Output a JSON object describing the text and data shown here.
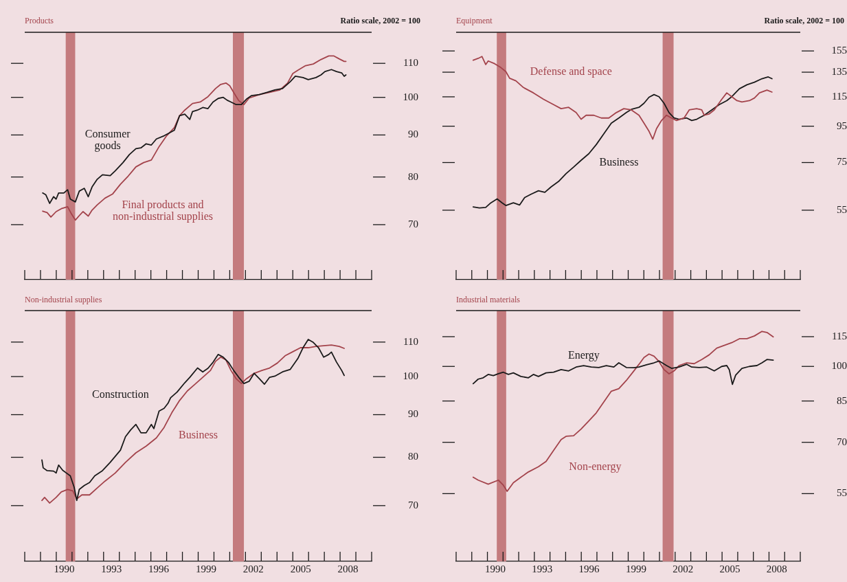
{
  "chart_data": [
    {
      "type": "line",
      "title": "Products",
      "subtitle": "Ratio scale, 2002 = 100",
      "log": true,
      "tick_labels": "y",
      "xlim": [
        1988,
        2010
      ],
      "xticks": [
        {
          "value": 1988,
          "label": null
        },
        {
          "value": 1989,
          "label": null
        },
        {
          "value": 1990,
          "label": null
        },
        {
          "value": 1991,
          "label": null
        },
        {
          "value": 1992,
          "label": null
        },
        {
          "value": 1993,
          "label": null
        },
        {
          "value": 1994,
          "label": null
        },
        {
          "value": 1995,
          "label": null
        },
        {
          "value": 1996,
          "label": null
        },
        {
          "value": 1997,
          "label": null
        },
        {
          "value": 1998,
          "label": null
        },
        {
          "value": 1999,
          "label": null
        },
        {
          "value": 2000,
          "label": null
        },
        {
          "value": 2001,
          "label": null
        },
        {
          "value": 2002,
          "label": null
        },
        {
          "value": 2003,
          "label": null
        },
        {
          "value": 2004,
          "label": null
        },
        {
          "value": 2005,
          "label": null
        },
        {
          "value": 2006,
          "label": null
        },
        {
          "value": 2007,
          "label": null
        },
        {
          "value": 2008,
          "label": null
        },
        {
          "value": 2009,
          "label": null
        },
        {
          "value": 2010,
          "label": null
        }
      ],
      "ylim": [
        60,
        120
      ],
      "yticks": [
        70,
        80,
        90,
        100,
        110
      ],
      "bands": [
        {
          "axis": "x",
          "from": 1990.6,
          "to": 1991.2,
          "color": "#c47b7e"
        },
        {
          "axis": "x",
          "from": 2001.2,
          "to": 2001.9,
          "color": "#c47b7e"
        }
      ],
      "series": [
        {
          "name": "Consumer goods",
          "color": "#1a1a1a",
          "x": [
            1989.14,
            1989.34,
            1989.58,
            1989.83,
            1989.99,
            1990.15,
            1990.48,
            1990.72,
            1990.89,
            1991.21,
            1991.46,
            1991.78,
            1992.03,
            1992.27,
            1992.6,
            1992.93,
            1993.42,
            1993.74,
            1994.23,
            1994.64,
            1995.05,
            1995.37,
            1995.7,
            1996.03,
            1996.35,
            1996.84,
            1997.17,
            1997.49,
            1997.82,
            1998.15,
            1998.47,
            1998.64,
            1998.96,
            1999.29,
            1999.62,
            1999.94,
            2000.27,
            2000.59,
            2000.84,
            2001.08,
            2001.41,
            2001.74,
            2002.06,
            2002.39,
            2002.88,
            2003.37,
            2003.86,
            2004.35,
            2004.84,
            2005.16,
            2005.65,
            2005.98,
            2006.47,
            2006.79,
            2007.04,
            2007.45,
            2007.77,
            2008.1,
            2008.26,
            2008.37
          ],
          "values": [
            76.5,
            76.1,
            74.3,
            75.7,
            75.2,
            76.5,
            76.5,
            77.2,
            75.2,
            74.6,
            76.9,
            77.5,
            75.7,
            77.8,
            79.5,
            80.5,
            80.3,
            81.4,
            83.3,
            85.2,
            86.6,
            86.8,
            87.8,
            87.5,
            89.0,
            89.8,
            90.5,
            91.2,
            95.0,
            95.4,
            94.0,
            96.1,
            96.5,
            97.2,
            96.9,
            98.7,
            99.7,
            100,
            99.2,
            98.7,
            98.0,
            98.0,
            99.5,
            100.5,
            100.8,
            101.4,
            102.1,
            102.5,
            104.5,
            106.1,
            105.7,
            105.1,
            105.7,
            106.5,
            107.5,
            108.1,
            107.5,
            107.1,
            106.1,
            106.5
          ]
        },
        {
          "name": "Final products and non-industrial supplies",
          "color": "#a3434b",
          "x": [
            1989.14,
            1989.42,
            1989.66,
            1989.99,
            1990.32,
            1990.72,
            1990.97,
            1991.21,
            1991.46,
            1991.7,
            1992.03,
            1992.27,
            1992.6,
            1993.09,
            1993.58,
            1994.07,
            1994.56,
            1995.05,
            1995.54,
            1996.03,
            1996.52,
            1997.0,
            1997.49,
            1997.82,
            1998.15,
            1998.64,
            1999.13,
            1999.62,
            2000.1,
            2000.43,
            2000.76,
            2001.0,
            2001.25,
            2001.57,
            2001.9,
            2002.23,
            2002.88,
            2003.53,
            2004.18,
            2004.67,
            2005.0,
            2005.32,
            2005.81,
            2006.3,
            2006.79,
            2007.28,
            2007.61,
            2007.94,
            2008.26,
            2008.37
          ],
          "values": [
            72.7,
            72.4,
            71.5,
            72.6,
            73.2,
            73.6,
            72.1,
            70.9,
            71.8,
            72.6,
            71.7,
            72.9,
            74.0,
            75.4,
            76.3,
            78.4,
            80.2,
            82.3,
            83.3,
            83.9,
            87.1,
            89.8,
            91.9,
            95.0,
            96.5,
            98.3,
            98.7,
            100.2,
            102.5,
            103.7,
            104.1,
            103.3,
            101.4,
            99.1,
            98.0,
            99.8,
            100.8,
            101.4,
            102.1,
            104.1,
            106.9,
            107.9,
            109.3,
            109.8,
            111.2,
            112.3,
            112.3,
            111.4,
            110.6,
            110.6
          ]
        }
      ]
    },
    {
      "type": "line",
      "title": "Equipment",
      "subtitle": "Ratio scale, 2002 = 100",
      "log": true,
      "tick_labels": "y",
      "xlim": [
        1988,
        2010
      ],
      "xticks": [
        {
          "value": 1988,
          "label": null
        },
        {
          "value": 1989,
          "label": null
        },
        {
          "value": 1990,
          "label": null
        },
        {
          "value": 1991,
          "label": null
        },
        {
          "value": 1992,
          "label": null
        },
        {
          "value": 1993,
          "label": null
        },
        {
          "value": 1994,
          "label": null
        },
        {
          "value": 1995,
          "label": null
        },
        {
          "value": 1996,
          "label": null
        },
        {
          "value": 1997,
          "label": null
        },
        {
          "value": 1998,
          "label": null
        },
        {
          "value": 1999,
          "label": null
        },
        {
          "value": 2000,
          "label": null
        },
        {
          "value": 2001,
          "label": null
        },
        {
          "value": 2002,
          "label": null
        },
        {
          "value": 2003,
          "label": null
        },
        {
          "value": 2004,
          "label": null
        },
        {
          "value": 2005,
          "label": null
        },
        {
          "value": 2006,
          "label": null
        },
        {
          "value": 2007,
          "label": null
        },
        {
          "value": 2008,
          "label": null
        },
        {
          "value": 2009,
          "label": null
        },
        {
          "value": 2010,
          "label": null
        }
      ],
      "ylim": [
        35,
        175
      ],
      "yticks": [
        55,
        75,
        95,
        115,
        135,
        155
      ],
      "bands": [
        {
          "axis": "x",
          "from": 1990.6,
          "to": 1991.2,
          "color": "#c47b7e"
        },
        {
          "axis": "x",
          "from": 2001.2,
          "to": 2001.9,
          "color": "#c47b7e"
        }
      ],
      "series": [
        {
          "name": "Defense and space",
          "color": "#a3434b",
          "x": [
            1989.09,
            1989.41,
            1989.65,
            1989.89,
            1990.05,
            1990.46,
            1990.86,
            1991.18,
            1991.42,
            1991.82,
            1992.3,
            1992.94,
            1993.59,
            1994.23,
            1994.71,
            1995.19,
            1995.67,
            1995.99,
            1996.31,
            1996.8,
            1997.28,
            1997.76,
            1998.24,
            1998.72,
            1999.2,
            1999.69,
            2000.01,
            2000.33,
            2000.57,
            2000.81,
            2001.13,
            2001.45,
            2001.77,
            2002.09,
            2002.57,
            2002.9,
            2003.38,
            2003.7,
            2003.86,
            2004.18,
            2004.5,
            2004.98,
            2005.3,
            2005.62,
            2005.95,
            2006.27,
            2006.75,
            2007.07,
            2007.39,
            2007.87,
            2008.19
          ],
          "values": [
            145.9,
            147.7,
            149.5,
            141.9,
            145.2,
            142.7,
            139.1,
            135.5,
            129.8,
            127.6,
            122.2,
            118.0,
            113.2,
            109.3,
            106.5,
            107.4,
            103.8,
            99.4,
            102.0,
            102.0,
            100.2,
            100.2,
            103.8,
            106.5,
            105.6,
            102.0,
            96.9,
            91.9,
            87.3,
            93.5,
            98.6,
            102.0,
            100.2,
            98.6,
            100.2,
            105.6,
            106.5,
            105.6,
            102.0,
            102.9,
            105.6,
            113.2,
            118.0,
            115.1,
            112.2,
            111.2,
            112.2,
            114.1,
            118.0,
            120.1,
            118.6
          ]
        },
        {
          "name": "Business",
          "color": "#1a1a1a",
          "x": [
            1989.09,
            1989.49,
            1989.89,
            1990.22,
            1990.62,
            1990.94,
            1991.18,
            1991.66,
            1992.06,
            1992.38,
            1992.78,
            1993.26,
            1993.67,
            1994.07,
            1994.55,
            1995.03,
            1995.51,
            1995.99,
            1996.48,
            1996.96,
            1997.44,
            1997.92,
            1998.4,
            1998.88,
            1999.2,
            1999.69,
            2000.01,
            2000.33,
            2000.65,
            2000.97,
            2001.29,
            2001.61,
            2001.93,
            2002.25,
            2002.74,
            2003.06,
            2003.38,
            2003.86,
            2004.34,
            2004.82,
            2005.3,
            2005.62,
            2006.11,
            2006.59,
            2007.07,
            2007.55,
            2007.95,
            2008.19
          ],
          "values": [
            56.2,
            55.8,
            56.0,
            57.7,
            59.2,
            57.7,
            56.7,
            57.7,
            56.9,
            59.7,
            61.0,
            62.4,
            61.8,
            64.0,
            66.3,
            69.8,
            72.8,
            76.1,
            79.4,
            84.3,
            90.4,
            96.9,
            100.2,
            103.8,
            106.0,
            107.4,
            110.3,
            114.7,
            116.7,
            115.1,
            110.3,
            103.8,
            100.2,
            99.4,
            100.2,
            98.6,
            99.4,
            102.0,
            105.6,
            109.3,
            112.2,
            115.1,
            121.2,
            124.4,
            126.5,
            129.4,
            130.9,
            129.4
          ]
        }
      ]
    },
    {
      "type": "line",
      "title": "Non-industrial supplies",
      "log": true,
      "xlim": [
        1988,
        2010
      ],
      "xticks": [
        {
          "value": 1988,
          "label": null
        },
        {
          "value": 1989,
          "label": null
        },
        {
          "value": 1990,
          "label": null
        },
        {
          "value": 1991,
          "label": null
        },
        {
          "value": 1992,
          "label": null
        },
        {
          "value": 1993,
          "label": null
        },
        {
          "value": 1994,
          "label": null
        },
        {
          "value": 1995,
          "label": null
        },
        {
          "value": 1996,
          "label": null
        },
        {
          "value": 1997,
          "label": null
        },
        {
          "value": 1998,
          "label": null
        },
        {
          "value": 1999,
          "label": null
        },
        {
          "value": 2000,
          "label": null
        },
        {
          "value": 2001,
          "label": null
        },
        {
          "value": 2002,
          "label": null
        },
        {
          "value": 2003,
          "label": null
        },
        {
          "value": 2004,
          "label": null
        },
        {
          "value": 2005,
          "label": null
        },
        {
          "value": 2006,
          "label": null
        },
        {
          "value": 2007,
          "label": null
        },
        {
          "value": 2008,
          "label": null
        },
        {
          "value": 2009,
          "label": null
        },
        {
          "value": 2010,
          "label": null
        },
        {
          "value": 1990.5,
          "label": "1990"
        },
        {
          "value": 1993.5,
          "label": "1993"
        },
        {
          "value": 1996.5,
          "label": "1996"
        },
        {
          "value": 1999.5,
          "label": "1999"
        },
        {
          "value": 2002.5,
          "label": "2002"
        },
        {
          "value": 2005.5,
          "label": "2005"
        },
        {
          "value": 2008.5,
          "label": "2008"
        }
      ],
      "ylim": [
        60,
        120
      ],
      "yticks": [
        70,
        80,
        90,
        100,
        110
      ],
      "bands": [
        {
          "axis": "x",
          "from": 1990.6,
          "to": 1991.2,
          "color": "#c47b7e"
        },
        {
          "axis": "x",
          "from": 2001.2,
          "to": 2001.9,
          "color": "#c47b7e"
        }
      ],
      "series": [
        {
          "name": "Construction",
          "color": "#1a1a1a",
          "x": [
            1989.09,
            1989.17,
            1989.42,
            1989.83,
            1989.99,
            1990.15,
            1990.4,
            1990.64,
            1990.89,
            1991.13,
            1991.3,
            1991.46,
            1991.78,
            1992.11,
            1992.44,
            1992.93,
            1993.42,
            1994.07,
            1994.39,
            1994.72,
            1995.05,
            1995.37,
            1995.7,
            1996.03,
            1996.19,
            1996.52,
            1996.84,
            1997.09,
            1997.25,
            1997.66,
            1998.15,
            1998.47,
            1998.96,
            1999.29,
            1999.62,
            1999.94,
            2000.27,
            2000.59,
            2000.92,
            2001.25,
            2001.57,
            2001.9,
            2002.23,
            2002.55,
            2002.88,
            2003.2,
            2003.53,
            2003.86,
            2004.35,
            2004.84,
            2005.32,
            2005.65,
            2005.98,
            2006.3,
            2006.63,
            2006.96,
            2007.28,
            2007.45,
            2007.77,
            2008.1,
            2008.26
          ],
          "values": [
            79.4,
            77.7,
            77.1,
            77.0,
            76.6,
            78.3,
            77.2,
            76.6,
            76.0,
            73.7,
            71.0,
            73.2,
            74.0,
            74.6,
            76.0,
            77.1,
            78.9,
            81.6,
            84.7,
            86.3,
            87.6,
            85.6,
            85.6,
            87.6,
            86.6,
            90.9,
            91.6,
            92.9,
            94.3,
            95.8,
            98.3,
            99.8,
            102.4,
            101.3,
            102.3,
            104.0,
            106.3,
            105.5,
            104.0,
            101.7,
            99.8,
            98.1,
            98.7,
            100.9,
            99.4,
            97.9,
            99.8,
            100.1,
            101.3,
            102.0,
            105.1,
            108.3,
            110.8,
            109.9,
            108.3,
            105.5,
            106.3,
            107.0,
            104.1,
            101.7,
            100.3
          ]
        },
        {
          "name": "Business",
          "color": "#a3434b",
          "x": [
            1989.09,
            1989.26,
            1989.58,
            1989.99,
            1990.32,
            1990.72,
            1991.05,
            1991.3,
            1991.62,
            1992.11,
            1992.6,
            1993.09,
            1993.74,
            1994.39,
            1995.05,
            1995.7,
            1996.35,
            1996.84,
            1997.33,
            1997.82,
            1998.31,
            1998.8,
            1999.29,
            1999.78,
            2000.1,
            2000.43,
            2000.76,
            2001.08,
            2001.41,
            2001.74,
            2002.06,
            2002.55,
            2003.04,
            2003.53,
            2004.02,
            2004.51,
            2005.0,
            2005.49,
            2005.98,
            2006.47,
            2006.96,
            2007.45,
            2007.94,
            2008.26
          ],
          "values": [
            71.0,
            71.6,
            70.5,
            71.6,
            72.7,
            73.2,
            72.9,
            71.3,
            72.1,
            72.1,
            73.5,
            74.9,
            76.6,
            78.9,
            81.0,
            82.5,
            84.4,
            86.9,
            90.5,
            93.6,
            96.1,
            97.9,
            99.8,
            101.7,
            104.3,
            105.5,
            104.7,
            101.7,
            99.4,
            98.1,
            99.4,
            100.9,
            101.7,
            102.4,
            103.8,
            105.9,
            107.1,
            108.3,
            108.3,
            108.7,
            108.9,
            109.1,
            108.7,
            108.1
          ]
        }
      ]
    },
    {
      "type": "line",
      "title": "Industrial materials",
      "log": true,
      "xlim": [
        1988,
        2010
      ],
      "xticks": [
        {
          "value": 1988,
          "label": null
        },
        {
          "value": 1989,
          "label": null
        },
        {
          "value": 1990,
          "label": null
        },
        {
          "value": 1991,
          "label": null
        },
        {
          "value": 1992,
          "label": null
        },
        {
          "value": 1993,
          "label": null
        },
        {
          "value": 1994,
          "label": null
        },
        {
          "value": 1995,
          "label": null
        },
        {
          "value": 1996,
          "label": null
        },
        {
          "value": 1997,
          "label": null
        },
        {
          "value": 1998,
          "label": null
        },
        {
          "value": 1999,
          "label": null
        },
        {
          "value": 2000,
          "label": null
        },
        {
          "value": 2001,
          "label": null
        },
        {
          "value": 2002,
          "label": null
        },
        {
          "value": 2003,
          "label": null
        },
        {
          "value": 2004,
          "label": null
        },
        {
          "value": 2005,
          "label": null
        },
        {
          "value": 2006,
          "label": null
        },
        {
          "value": 2007,
          "label": null
        },
        {
          "value": 2008,
          "label": null
        },
        {
          "value": 2009,
          "label": null
        },
        {
          "value": 2010,
          "label": null
        },
        {
          "value": 1990.5,
          "label": "1990"
        },
        {
          "value": 1993.5,
          "label": "1993"
        },
        {
          "value": 1996.5,
          "label": "1996"
        },
        {
          "value": 1999.5,
          "label": "1999"
        },
        {
          "value": 2002.5,
          "label": "2002"
        },
        {
          "value": 2005.5,
          "label": "2005"
        },
        {
          "value": 2008.5,
          "label": "2008"
        }
      ],
      "ylim": [
        40,
        130
      ],
      "yticks": [
        55,
        70,
        85,
        100,
        115
      ],
      "bands": [
        {
          "axis": "x",
          "from": 1990.6,
          "to": 1991.2,
          "color": "#c47b7e"
        },
        {
          "axis": "x",
          "from": 2001.2,
          "to": 2001.9,
          "color": "#c47b7e"
        }
      ],
      "series": [
        {
          "name": "Energy",
          "color": "#1a1a1a",
          "x": [
            1989.09,
            1989.41,
            1989.73,
            1990.05,
            1990.38,
            1990.7,
            1991.02,
            1991.34,
            1991.66,
            1992.14,
            1992.62,
            1992.94,
            1993.26,
            1993.75,
            1994.23,
            1994.71,
            1995.19,
            1995.67,
            1996.15,
            1996.64,
            1997.12,
            1997.6,
            1998.08,
            1998.4,
            1998.88,
            1999.36,
            1999.69,
            2000.17,
            2000.65,
            2000.97,
            2001.45,
            2001.77,
            2002.25,
            2002.74,
            2003.06,
            2003.54,
            2004.02,
            2004.5,
            2004.98,
            2005.3,
            2005.46,
            2005.66,
            2005.87,
            2006.27,
            2006.75,
            2007.23,
            2007.55,
            2007.87,
            2008.27
          ],
          "values": [
            92.2,
            94.2,
            94.8,
            96.3,
            95.8,
            96.6,
            97.3,
            96.3,
            97.0,
            95.4,
            94.8,
            96.3,
            95.4,
            97.0,
            97.3,
            98.5,
            97.9,
            99.7,
            100.4,
            99.7,
            99.5,
            100.4,
            99.7,
            101.7,
            99.5,
            99.4,
            99.7,
            100.8,
            101.7,
            102.6,
            100.4,
            99.1,
            99.7,
            101.0,
            99.7,
            99.5,
            99.7,
            97.9,
            100.0,
            100.4,
            98.5,
            91.9,
            96.0,
            99.1,
            100.0,
            100.4,
            101.7,
            103.3,
            103.0
          ]
        },
        {
          "name": "Non-energy",
          "color": "#a3434b",
          "x": [
            1989.09,
            1989.41,
            1990.05,
            1990.7,
            1991.02,
            1991.26,
            1991.66,
            1992.14,
            1992.62,
            1993.26,
            1993.75,
            1994.23,
            1994.71,
            1995.03,
            1995.51,
            1995.99,
            1996.48,
            1996.96,
            1997.44,
            1997.92,
            1998.4,
            1998.88,
            1999.36,
            1999.69,
            2000.01,
            2000.33,
            2000.65,
            2000.97,
            2001.29,
            2001.61,
            2001.93,
            2002.25,
            2002.74,
            2003.22,
            2003.7,
            2004.18,
            2004.66,
            2005.14,
            2005.62,
            2006.11,
            2006.59,
            2007.07,
            2007.55,
            2007.87,
            2008.27
          ],
          "values": [
            59.4,
            58.6,
            57.5,
            58.6,
            57.2,
            55.6,
            57.9,
            59.4,
            60.9,
            62.4,
            64.0,
            67.4,
            70.9,
            72.0,
            72.2,
            74.5,
            77.4,
            80.4,
            84.6,
            89.0,
            90.1,
            93.6,
            97.9,
            101.0,
            104.3,
            106.0,
            104.9,
            102.3,
            98.5,
            96.6,
            97.9,
            100.4,
            101.7,
            101.3,
            103.3,
            105.6,
            109.0,
            110.4,
            111.8,
            113.9,
            113.9,
            115.4,
            117.9,
            117.3,
            114.9
          ]
        }
      ]
    }
  ]
}
